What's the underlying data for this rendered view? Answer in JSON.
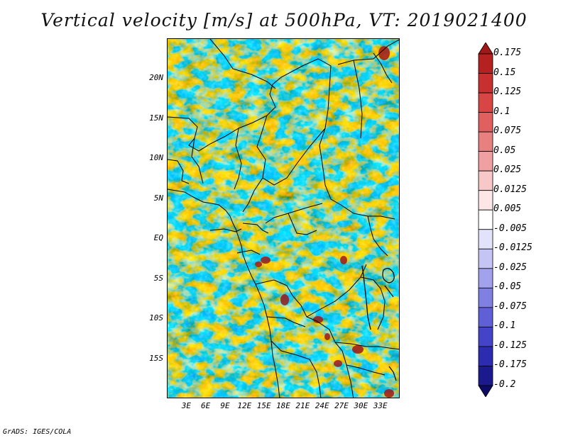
{
  "title": "Vertical velocity [m/s] at 500hPa, VT: 2019021400",
  "credit": "GrADS: IGES/COLA",
  "map": {
    "variable": "Vertical velocity",
    "units": "m/s",
    "level": "500hPa",
    "valid_time": "2019021400",
    "lon_range": [
      0,
      36
    ],
    "lat_range": [
      -20,
      25
    ],
    "lat_ticks": [
      {
        "label": "20N",
        "value": 20
      },
      {
        "label": "15N",
        "value": 15
      },
      {
        "label": "10N",
        "value": 10
      },
      {
        "label": "5N",
        "value": 5
      },
      {
        "label": "EQ",
        "value": 0
      },
      {
        "label": "5S",
        "value": -5
      },
      {
        "label": "10S",
        "value": -10
      },
      {
        "label": "15S",
        "value": -15
      }
    ],
    "lon_ticks": [
      {
        "label": "3E",
        "value": 3
      },
      {
        "label": "6E",
        "value": 6
      },
      {
        "label": "9E",
        "value": 9
      },
      {
        "label": "12E",
        "value": 12
      },
      {
        "label": "15E",
        "value": 15
      },
      {
        "label": "18E",
        "value": 18
      },
      {
        "label": "21E",
        "value": 21
      },
      {
        "label": "24E",
        "value": 24
      },
      {
        "label": "27E",
        "value": 27
      },
      {
        "label": "30E",
        "value": 30
      },
      {
        "label": "33E",
        "value": 33
      }
    ]
  },
  "colorbar": {
    "levels": [
      "0.175",
      "0.15",
      "0.125",
      "0.1",
      "0.075",
      "0.05",
      "0.025",
      "0.0125",
      "0.005",
      "-0.005",
      "-0.0125",
      "-0.025",
      "-0.05",
      "-0.075",
      "-0.1",
      "-0.125",
      "-0.175",
      "-0.2"
    ],
    "colors": [
      "#a01818",
      "#b52020",
      "#c83030",
      "#d84545",
      "#e06060",
      "#e88080",
      "#f0a0a0",
      "#f8c8c8",
      "#fde6e6",
      "#ffffff",
      "#e2e2fb",
      "#c4c4f5",
      "#a2a2ec",
      "#8080e2",
      "#5f5fd6",
      "#4444c8",
      "#2c2cb0",
      "#1a1a8c",
      "#0c0c66"
    ]
  }
}
